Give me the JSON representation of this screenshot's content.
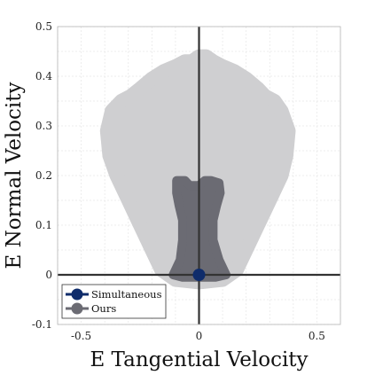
{
  "chart_data": {
    "type": "scatter",
    "title": "",
    "xlabel": "E Tangential Velocity",
    "ylabel": "E Normal Velocity",
    "xlim": [
      -0.6,
      0.6
    ],
    "ylim": [
      -0.1,
      0.5
    ],
    "xticks": [
      -0.5,
      0,
      0.5
    ],
    "xtick_labels": [
      "-0.5",
      "0",
      "0.5"
    ],
    "yticks": [
      -0.1,
      0,
      0.1,
      0.2,
      0.3,
      0.4,
      0.5
    ],
    "ytick_labels": [
      "-0.1",
      "0",
      "0.1",
      "0.2",
      "0.3",
      "0.4",
      "0.5"
    ],
    "grid": true,
    "legend_position": "bottom-left",
    "colors": {
      "background_region": "#cfcfd1",
      "ours": "#6b6b73",
      "simultaneous": "#0f2c6b",
      "axis_lines": "#333333",
      "grid": "#e6e6e6"
    },
    "series": [
      {
        "name": "Ours",
        "kind": "filled-region",
        "color": "#6b6b73",
        "outline": [
          [
            -0.095,
            0.19
          ],
          [
            -0.06,
            0.19
          ],
          [
            -0.04,
            0.18
          ],
          [
            -0.02,
            0.18
          ],
          [
            0.0,
            0.18
          ],
          [
            0.025,
            0.19
          ],
          [
            0.05,
            0.19
          ],
          [
            0.085,
            0.185
          ],
          [
            0.09,
            0.165
          ],
          [
            0.075,
            0.14
          ],
          [
            0.06,
            0.11
          ],
          [
            0.06,
            0.07
          ],
          [
            0.085,
            0.03
          ],
          [
            0.115,
            0.0
          ],
          [
            0.07,
            -0.005
          ],
          [
            -0.07,
            -0.005
          ],
          [
            -0.11,
            0.0
          ],
          [
            -0.08,
            0.03
          ],
          [
            -0.07,
            0.07
          ],
          [
            -0.07,
            0.11
          ],
          [
            -0.085,
            0.14
          ],
          [
            -0.095,
            0.165
          ]
        ]
      },
      {
        "name": "Simultaneous",
        "kind": "point",
        "color": "#0f2c6b",
        "x": [
          0.0
        ],
        "y": [
          0.0
        ]
      }
    ],
    "background_region": {
      "color": "#cfcfd1",
      "outline": [
        [
          -0.03,
          0.43
        ],
        [
          0.0,
          0.44
        ],
        [
          0.03,
          0.44
        ],
        [
          0.06,
          0.43
        ],
        [
          0.1,
          0.42
        ],
        [
          0.15,
          0.41
        ],
        [
          0.2,
          0.395
        ],
        [
          0.25,
          0.375
        ],
        [
          0.28,
          0.36
        ],
        [
          0.32,
          0.35
        ],
        [
          0.35,
          0.33
        ],
        [
          0.38,
          0.29
        ],
        [
          0.37,
          0.24
        ],
        [
          0.35,
          0.2
        ],
        [
          0.3,
          0.15
        ],
        [
          0.25,
          0.1
        ],
        [
          0.2,
          0.05
        ],
        [
          0.16,
          0.01
        ],
        [
          0.1,
          -0.01
        ],
        [
          0.0,
          -0.015
        ],
        [
          -0.1,
          -0.01
        ],
        [
          -0.16,
          0.01
        ],
        [
          -0.2,
          0.05
        ],
        [
          -0.25,
          0.1
        ],
        [
          -0.3,
          0.15
        ],
        [
          -0.35,
          0.2
        ],
        [
          -0.38,
          0.24
        ],
        [
          -0.39,
          0.29
        ],
        [
          -0.37,
          0.33
        ],
        [
          -0.33,
          0.35
        ],
        [
          -0.29,
          0.36
        ],
        [
          -0.25,
          0.375
        ],
        [
          -0.2,
          0.395
        ],
        [
          -0.15,
          0.41
        ],
        [
          -0.1,
          0.42
        ],
        [
          -0.06,
          0.43
        ]
      ]
    },
    "legend": [
      {
        "label": "Simultaneous",
        "color": "#0f2c6b"
      },
      {
        "label": "Ours",
        "color": "#6b6b73"
      }
    ]
  }
}
